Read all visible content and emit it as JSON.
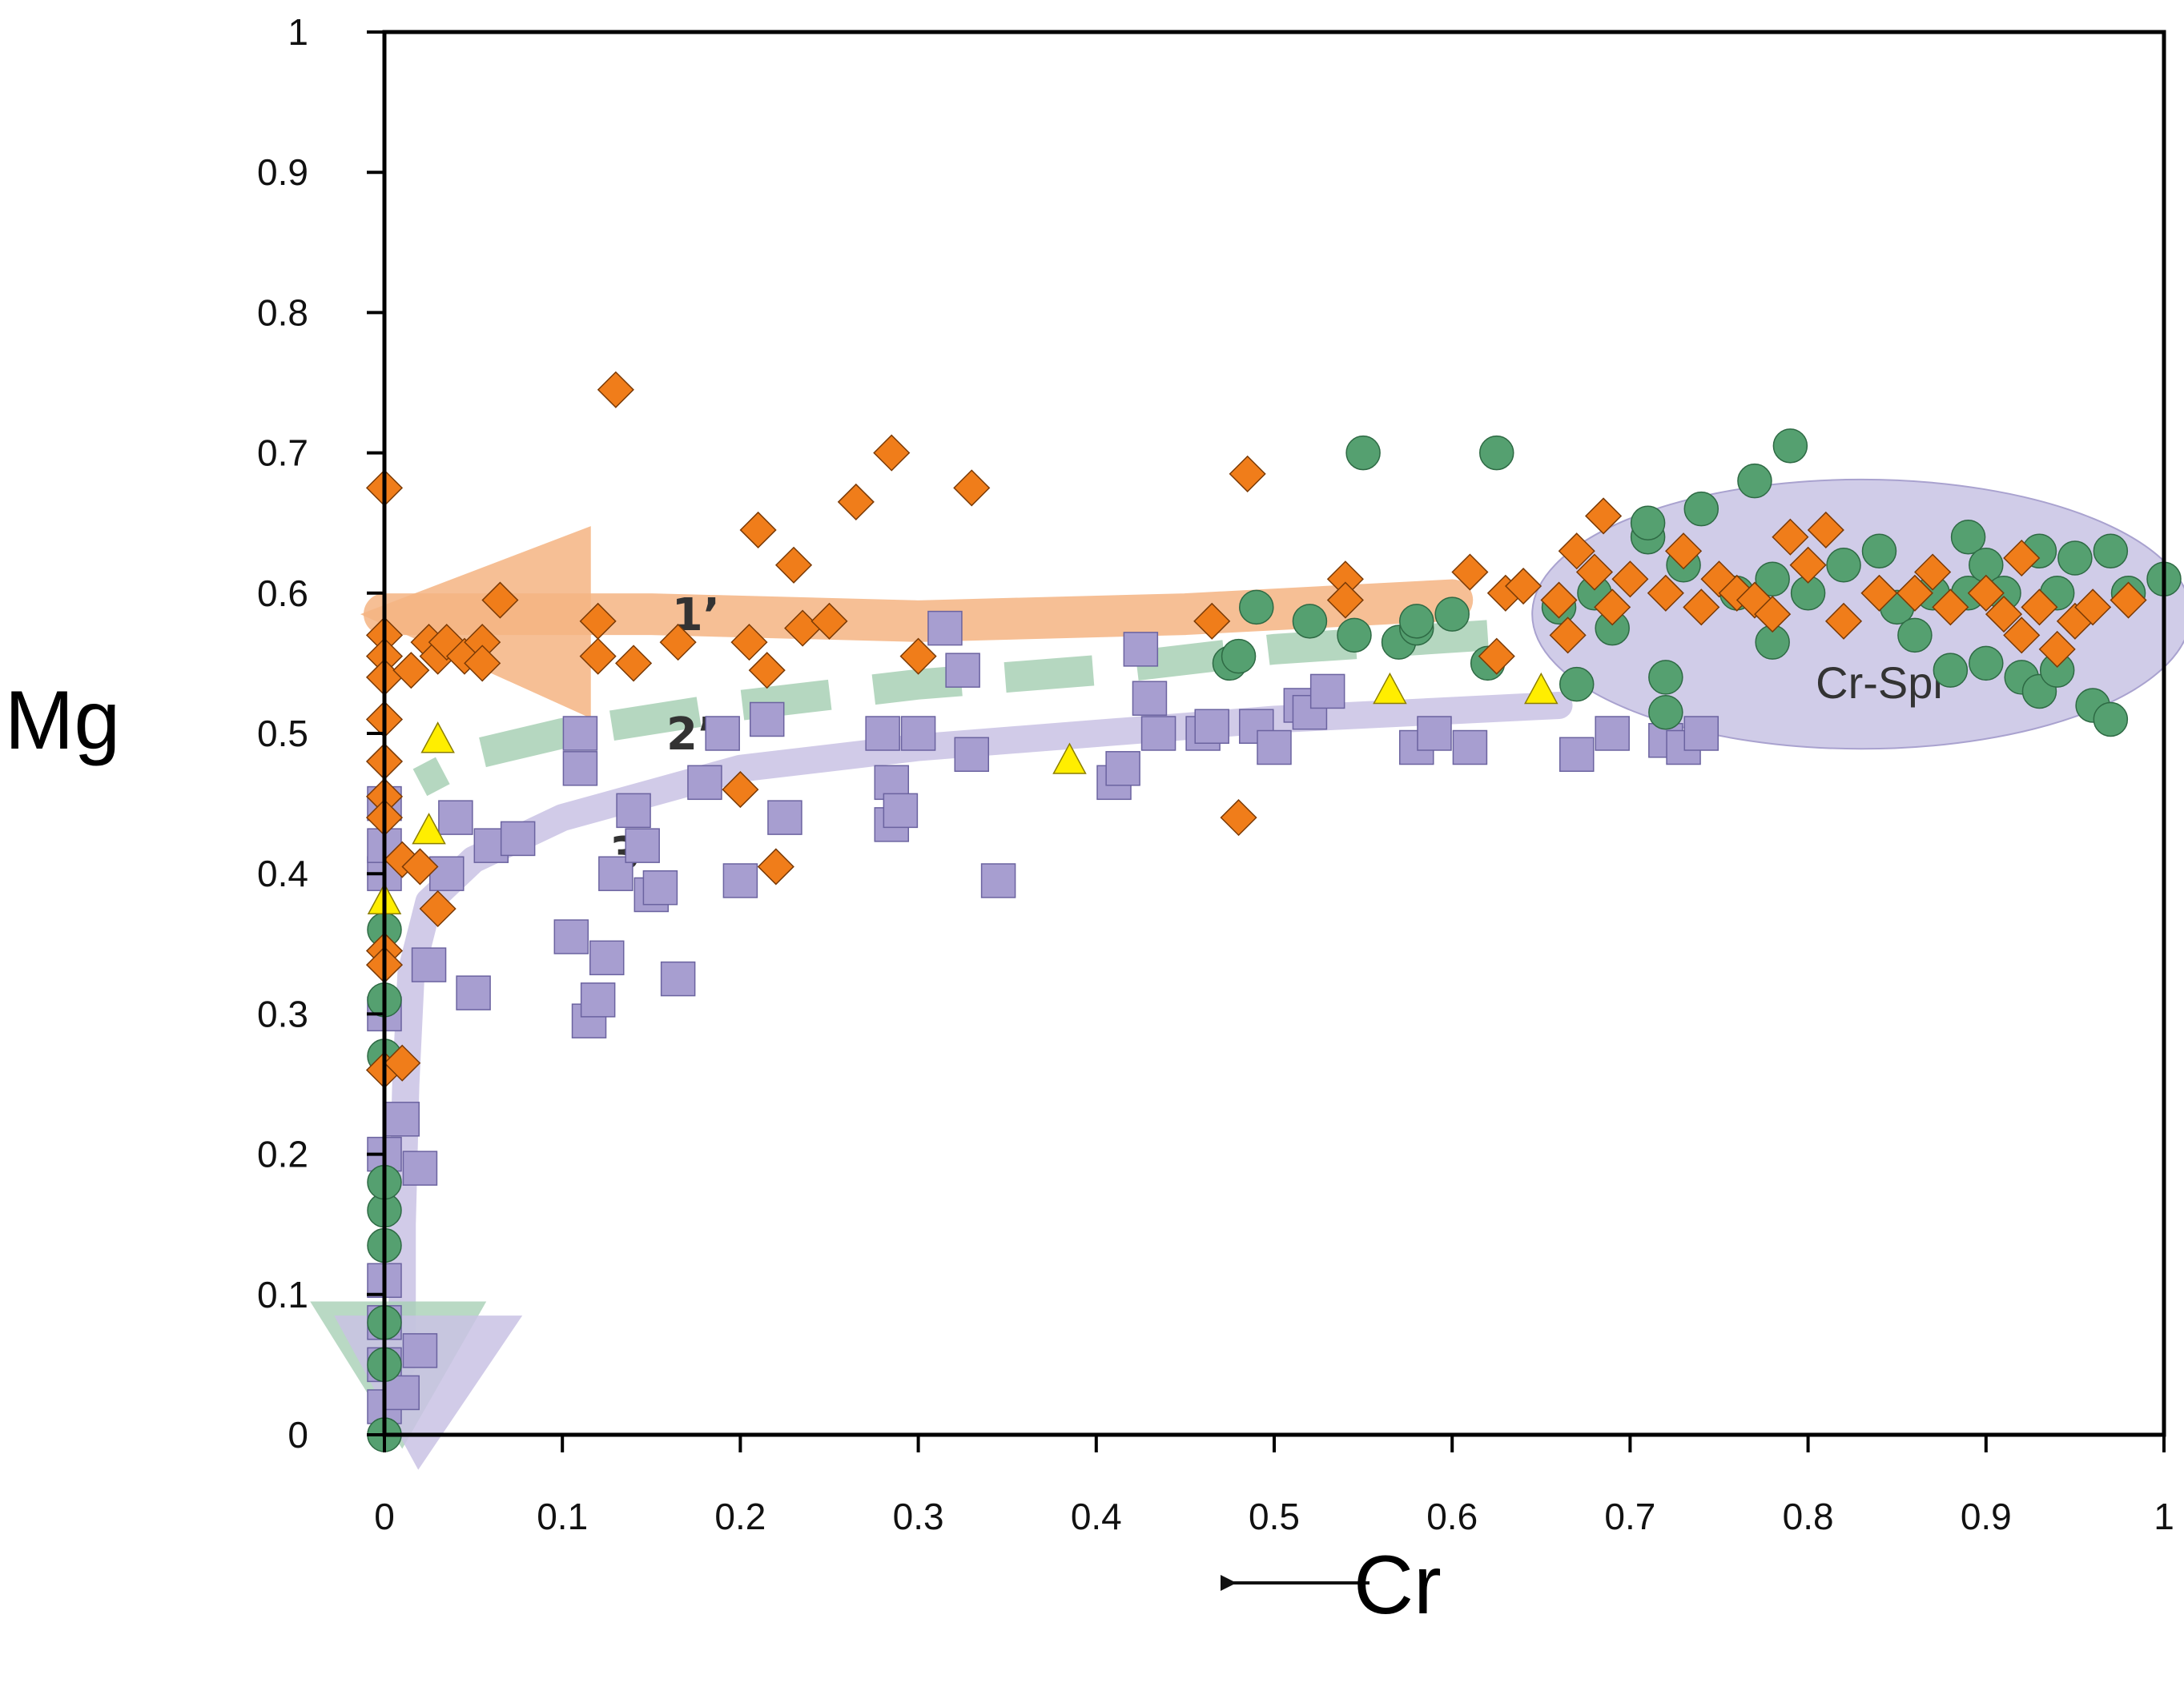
{
  "chart_data": {
    "type": "scatter",
    "title": "",
    "xlabel": "Cr",
    "ylabel": "Mg",
    "xlabel_arrow": "←",
    "xlim": [
      0,
      1
    ],
    "ylim": [
      0,
      1
    ],
    "xticks": [
      0,
      0.1,
      0.2,
      0.3,
      0.4,
      0.5,
      0.6,
      0.7,
      0.8,
      0.9,
      1
    ],
    "yticks": [
      0,
      0.1,
      0.2,
      0.3,
      0.4,
      0.5,
      0.6,
      0.7,
      0.8,
      0.9,
      1
    ],
    "xtick_labels": [
      "0",
      "0.1",
      "0.2",
      "0.3",
      "0.4",
      "0.5",
      "0.6",
      "0.7",
      "0.8",
      "0.9",
      "1"
    ],
    "ytick_labels": [
      "0",
      "0.1",
      "0.2",
      "0.3",
      "0.4",
      "0.5",
      "0.6",
      "0.7",
      "0.8",
      "0.9",
      "1"
    ],
    "grid": false,
    "colors": {
      "diamond": "#f07d1a",
      "circle": "#55a070",
      "square": "#a79ed0",
      "triangle": "#ffee00",
      "trend1": "#f5b483",
      "trend2": "#a8d0b5",
      "trend3": "#c9c2e4",
      "ellipse": "#cbc6e6"
    },
    "region": {
      "label": "Cr-Spl",
      "cx": 0.83,
      "cy": 0.585,
      "rx": 0.185,
      "ry": 0.096
    },
    "trends": [
      {
        "label": "1’",
        "x": [
          0.6,
          0.45,
          0.3,
          0.15,
          0.08,
          0.0
        ],
        "y": [
          0.595,
          0.585,
          0.58,
          0.585,
          0.585,
          0.585
        ],
        "label_at": [
          0.175,
          0.585
        ]
      },
      {
        "label": "2’",
        "x": [
          0.62,
          0.5,
          0.4,
          0.3,
          0.2,
          0.1,
          0.05,
          0.02
        ],
        "y": [
          0.57,
          0.56,
          0.545,
          0.535,
          0.52,
          0.5,
          0.485,
          0.465
        ],
        "label_at": [
          0.172,
          0.5
        ]
      },
      {
        "label": "3’",
        "x": [
          0.66,
          0.5,
          0.4,
          0.3,
          0.2,
          0.1,
          0.05,
          0.025,
          0.015,
          0.012,
          0.01,
          0.01
        ],
        "y": [
          0.52,
          0.51,
          0.5,
          0.49,
          0.475,
          0.44,
          0.41,
          0.38,
          0.33,
          0.25,
          0.15,
          0.05
        ],
        "label_at": [
          0.14,
          0.415
        ]
      }
    ],
    "series": [
      {
        "name": "diamond",
        "marker": "diamond",
        "points": [
          [
            0.0,
            0.675
          ],
          [
            0.0,
            0.57
          ],
          [
            0.0,
            0.555
          ],
          [
            0.0,
            0.54
          ],
          [
            0.0,
            0.51
          ],
          [
            0.0,
            0.48
          ],
          [
            0.0,
            0.455
          ],
          [
            0.0,
            0.44
          ],
          [
            0.0,
            0.345
          ],
          [
            0.0,
            0.335
          ],
          [
            0.0,
            0.26
          ],
          [
            0.01,
            0.265
          ],
          [
            0.01,
            0.41
          ],
          [
            0.015,
            0.545
          ],
          [
            0.02,
            0.405
          ],
          [
            0.025,
            0.565
          ],
          [
            0.03,
            0.375
          ],
          [
            0.03,
            0.555
          ],
          [
            0.035,
            0.565
          ],
          [
            0.045,
            0.555
          ],
          [
            0.055,
            0.565
          ],
          [
            0.055,
            0.55
          ],
          [
            0.065,
            0.595
          ],
          [
            0.12,
            0.58
          ],
          [
            0.12,
            0.555
          ],
          [
            0.13,
            0.745
          ],
          [
            0.14,
            0.55
          ],
          [
            0.165,
            0.565
          ],
          [
            0.2,
            0.46
          ],
          [
            0.205,
            0.565
          ],
          [
            0.21,
            0.645
          ],
          [
            0.215,
            0.545
          ],
          [
            0.22,
            0.405
          ],
          [
            0.23,
            0.62
          ],
          [
            0.235,
            0.575
          ],
          [
            0.25,
            0.58
          ],
          [
            0.265,
            0.665
          ],
          [
            0.285,
            0.7
          ],
          [
            0.3,
            0.555
          ],
          [
            0.33,
            0.675
          ],
          [
            0.465,
            0.58
          ],
          [
            0.48,
            0.44
          ],
          [
            0.485,
            0.685
          ],
          [
            0.54,
            0.61
          ],
          [
            0.54,
            0.595
          ],
          [
            0.61,
            0.615
          ],
          [
            0.625,
            0.555
          ],
          [
            0.63,
            0.6
          ],
          [
            0.64,
            0.605
          ],
          [
            0.66,
            0.595
          ],
          [
            0.665,
            0.57
          ],
          [
            0.67,
            0.63
          ],
          [
            0.68,
            0.615
          ],
          [
            0.685,
            0.655
          ],
          [
            0.69,
            0.59
          ],
          [
            0.7,
            0.61
          ],
          [
            0.72,
            0.6
          ],
          [
            0.73,
            0.63
          ],
          [
            0.74,
            0.59
          ],
          [
            0.75,
            0.61
          ],
          [
            0.76,
            0.6
          ],
          [
            0.77,
            0.595
          ],
          [
            0.78,
            0.585
          ],
          [
            0.79,
            0.64
          ],
          [
            0.8,
            0.62
          ],
          [
            0.81,
            0.645
          ],
          [
            0.82,
            0.58
          ],
          [
            0.84,
            0.6
          ],
          [
            0.86,
            0.6
          ],
          [
            0.87,
            0.615
          ],
          [
            0.88,
            0.59
          ],
          [
            0.9,
            0.6
          ],
          [
            0.91,
            0.585
          ],
          [
            0.92,
            0.57
          ],
          [
            0.92,
            0.625
          ],
          [
            0.93,
            0.59
          ],
          [
            0.94,
            0.56
          ],
          [
            0.95,
            0.58
          ],
          [
            0.96,
            0.59
          ],
          [
            0.98,
            0.595
          ]
        ]
      },
      {
        "name": "circle",
        "marker": "circle",
        "points": [
          [
            0.0,
            0.0
          ],
          [
            0.0,
            0.05
          ],
          [
            0.0,
            0.08
          ],
          [
            0.0,
            0.135
          ],
          [
            0.0,
            0.16
          ],
          [
            0.0,
            0.18
          ],
          [
            0.0,
            0.27
          ],
          [
            0.0,
            0.31
          ],
          [
            0.0,
            0.36
          ],
          [
            0.475,
            0.55
          ],
          [
            0.48,
            0.555
          ],
          [
            0.49,
            0.59
          ],
          [
            0.52,
            0.58
          ],
          [
            0.545,
            0.57
          ],
          [
            0.55,
            0.7
          ],
          [
            0.57,
            0.565
          ],
          [
            0.58,
            0.575
          ],
          [
            0.58,
            0.58
          ],
          [
            0.6,
            0.585
          ],
          [
            0.62,
            0.55
          ],
          [
            0.625,
            0.7
          ],
          [
            0.66,
            0.59
          ],
          [
            0.67,
            0.535
          ],
          [
            0.68,
            0.6
          ],
          [
            0.69,
            0.575
          ],
          [
            0.71,
            0.64
          ],
          [
            0.71,
            0.65
          ],
          [
            0.72,
            0.54
          ],
          [
            0.72,
            0.515
          ],
          [
            0.73,
            0.62
          ],
          [
            0.74,
            0.66
          ],
          [
            0.76,
            0.6
          ],
          [
            0.77,
            0.68
          ],
          [
            0.78,
            0.565
          ],
          [
            0.78,
            0.61
          ],
          [
            0.79,
            0.705
          ],
          [
            0.8,
            0.6
          ],
          [
            0.82,
            0.62
          ],
          [
            0.84,
            0.63
          ],
          [
            0.85,
            0.59
          ],
          [
            0.86,
            0.57
          ],
          [
            0.87,
            0.6
          ],
          [
            0.88,
            0.545
          ],
          [
            0.89,
            0.64
          ],
          [
            0.89,
            0.6
          ],
          [
            0.9,
            0.62
          ],
          [
            0.9,
            0.55
          ],
          [
            0.91,
            0.6
          ],
          [
            0.92,
            0.54
          ],
          [
            0.93,
            0.63
          ],
          [
            0.93,
            0.53
          ],
          [
            0.94,
            0.6
          ],
          [
            0.94,
            0.545
          ],
          [
            0.95,
            0.625
          ],
          [
            0.96,
            0.52
          ],
          [
            0.97,
            0.51
          ],
          [
            0.97,
            0.63
          ],
          [
            0.98,
            0.6
          ],
          [
            1.0,
            0.61
          ]
        ]
      },
      {
        "name": "square",
        "marker": "square",
        "points": [
          [
            0.0,
            0.02
          ],
          [
            0.0,
            0.05
          ],
          [
            0.0,
            0.08
          ],
          [
            0.0,
            0.11
          ],
          [
            0.0,
            0.2
          ],
          [
            0.0,
            0.3
          ],
          [
            0.0,
            0.4
          ],
          [
            0.0,
            0.42
          ],
          [
            0.0,
            0.45
          ],
          [
            0.01,
            0.225
          ],
          [
            0.01,
            0.03
          ],
          [
            0.02,
            0.19
          ],
          [
            0.02,
            0.06
          ],
          [
            0.025,
            0.335
          ],
          [
            0.035,
            0.4
          ],
          [
            0.04,
            0.44
          ],
          [
            0.05,
            0.315
          ],
          [
            0.06,
            0.42
          ],
          [
            0.075,
            0.425
          ],
          [
            0.105,
            0.355
          ],
          [
            0.11,
            0.5
          ],
          [
            0.11,
            0.475
          ],
          [
            0.115,
            0.295
          ],
          [
            0.12,
            0.31
          ],
          [
            0.125,
            0.34
          ],
          [
            0.13,
            0.4
          ],
          [
            0.14,
            0.445
          ],
          [
            0.145,
            0.42
          ],
          [
            0.15,
            0.385
          ],
          [
            0.155,
            0.39
          ],
          [
            0.165,
            0.325
          ],
          [
            0.18,
            0.465
          ],
          [
            0.19,
            0.5
          ],
          [
            0.2,
            0.395
          ],
          [
            0.215,
            0.51
          ],
          [
            0.225,
            0.44
          ],
          [
            0.28,
            0.5
          ],
          [
            0.285,
            0.465
          ],
          [
            0.285,
            0.435
          ],
          [
            0.29,
            0.445
          ],
          [
            0.3,
            0.5
          ],
          [
            0.315,
            0.575
          ],
          [
            0.325,
            0.545
          ],
          [
            0.33,
            0.485
          ],
          [
            0.345,
            0.395
          ],
          [
            0.41,
            0.465
          ],
          [
            0.415,
            0.475
          ],
          [
            0.425,
            0.56
          ],
          [
            0.43,
            0.525
          ],
          [
            0.435,
            0.5
          ],
          [
            0.46,
            0.5
          ],
          [
            0.465,
            0.505
          ],
          [
            0.49,
            0.505
          ],
          [
            0.5,
            0.49
          ],
          [
            0.515,
            0.52
          ],
          [
            0.52,
            0.515
          ],
          [
            0.53,
            0.53
          ],
          [
            0.58,
            0.49
          ],
          [
            0.59,
            0.5
          ],
          [
            0.61,
            0.49
          ],
          [
            0.67,
            0.485
          ],
          [
            0.69,
            0.5
          ],
          [
            0.72,
            0.495
          ],
          [
            0.73,
            0.49
          ],
          [
            0.74,
            0.5
          ]
        ]
      },
      {
        "name": "triangle",
        "marker": "triangle",
        "points": [
          [
            0.0,
            0.38
          ],
          [
            0.03,
            0.495
          ],
          [
            0.025,
            0.43
          ],
          [
            0.385,
            0.48
          ],
          [
            0.565,
            0.53
          ],
          [
            0.65,
            0.53
          ]
        ]
      }
    ]
  }
}
